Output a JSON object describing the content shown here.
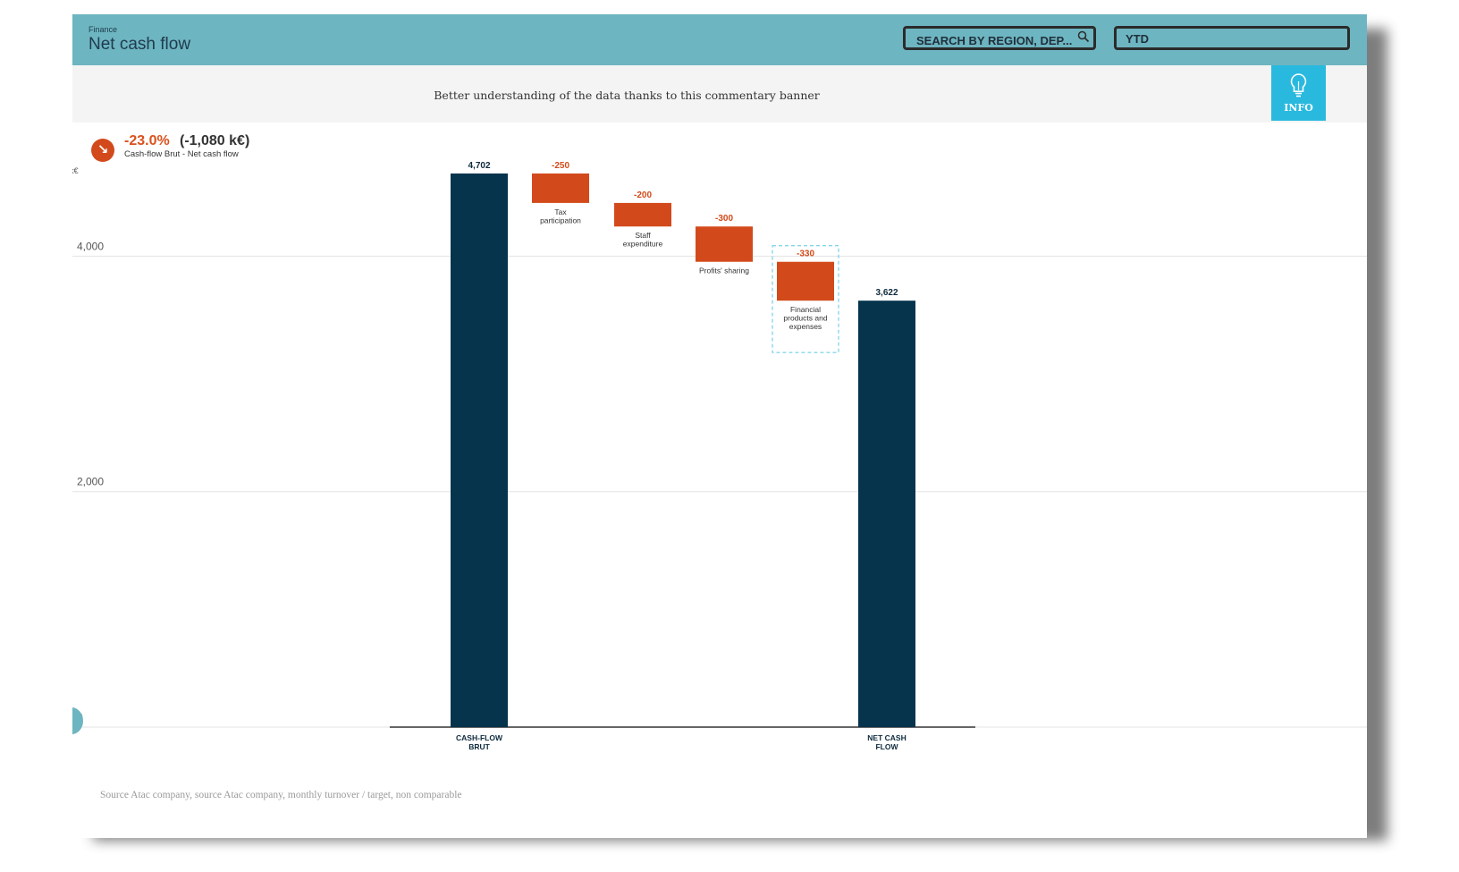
{
  "header": {
    "section": "Finance",
    "title": "Net cash flow",
    "search_placeholder": "SEARCH BY REGION, DEP...",
    "period": "YTD"
  },
  "banner": {
    "text": "Better understanding of the data thanks to this commentary banner",
    "info_label": "INFO"
  },
  "kpi": {
    "change": "-23.0%",
    "absolute": "(-1,080 k€)",
    "caption": "Cash-flow Brut - Net cash flow",
    "trend_icon": "arrow-down-right-icon"
  },
  "colors": {
    "header": "#6db5c1",
    "total": "#06344d",
    "negative": "#d24a1b",
    "info": "#29b9df"
  },
  "chart_data": {
    "type": "waterfall",
    "unit": "k€",
    "ylim": [
      0,
      4702
    ],
    "yticks": [
      "0",
      "2,000",
      "4,000"
    ],
    "ytick_values": [
      0,
      2000,
      4000
    ],
    "steps": [
      {
        "name": "CASH-FLOW BRUT",
        "value": 4702,
        "label": "4,702",
        "kind": "total"
      },
      {
        "name": "Tax participation",
        "value": -250,
        "label": "-250",
        "kind": "delta"
      },
      {
        "name": "Staff expenditure",
        "value": -200,
        "label": "-200",
        "kind": "delta"
      },
      {
        "name": "Profits' sharing",
        "value": -300,
        "label": "-300",
        "kind": "delta"
      },
      {
        "name": "Financial products and expenses",
        "value": -330,
        "label": "-330",
        "kind": "delta",
        "selected": true
      },
      {
        "name": "NET CASH FLOW",
        "value": 3622,
        "label": "3,622",
        "kind": "total"
      }
    ]
  },
  "footer": {
    "source": "Source Atac company, source Atac company, monthly turnover / target, non comparable"
  }
}
